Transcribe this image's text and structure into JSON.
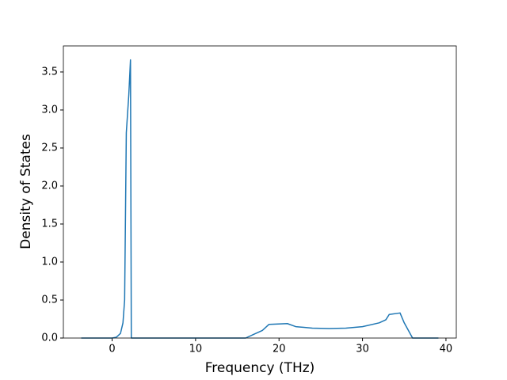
{
  "chart_data": {
    "type": "line",
    "xlabel": "Frequency (THz)",
    "ylabel": "Density of States",
    "x": [
      -3.7,
      0,
      0.5,
      1.0,
      1.3,
      1.5,
      1.7,
      2.0,
      2.2,
      2.3,
      16,
      17,
      18,
      18.8,
      21,
      22,
      24,
      26,
      28,
      30,
      32,
      32.8,
      33.2,
      34.5,
      35,
      35.5,
      36,
      39.1
    ],
    "series": [
      {
        "color": "#1f77b4",
        "values": [
          0,
          0,
          0.01,
          0.06,
          0.2,
          0.5,
          2.7,
          3.2,
          3.66,
          0,
          0,
          0.05,
          0.1,
          0.18,
          0.19,
          0.15,
          0.13,
          0.125,
          0.13,
          0.15,
          0.2,
          0.24,
          0.31,
          0.33,
          0.2,
          0.1,
          0,
          0
        ]
      }
    ],
    "xlim": [
      -5.84,
      41.24
    ],
    "ylim": [
      0,
      3.843
    ],
    "xticks": [
      0,
      10,
      20,
      30,
      40
    ],
    "yticks": [
      {
        "value": 0,
        "label": "0.0"
      },
      0.5,
      {
        "value": 1,
        "label": "1.0"
      },
      1.5,
      {
        "value": 2,
        "label": "2.0"
      },
      2.5,
      {
        "value": 3,
        "label": "3.0"
      },
      3.5
    ],
    "grid": false
  }
}
